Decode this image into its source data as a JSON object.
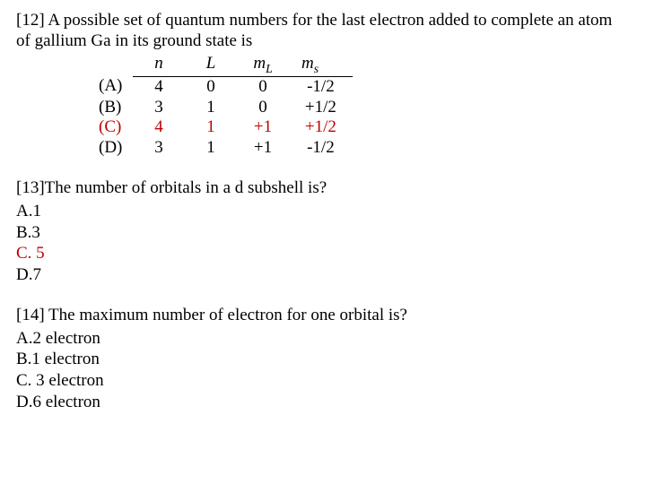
{
  "q12": {
    "prompt": "[12] A possible set of quantum numbers for the last electron added to complete an atom of gallium Ga in its ground state is",
    "headers": {
      "n": "n",
      "L": "L",
      "mL": "m",
      "mL_sub": "L",
      "ms": "m",
      "ms_sub": "s"
    },
    "rows": [
      {
        "label": "(A)",
        "n": "4",
        "L": "0",
        "mL": "0",
        "ms": "-1/2",
        "highlight": false
      },
      {
        "label": "(B)",
        "n": "3",
        "L": "1",
        "mL": "0",
        "ms": "+1/2",
        "highlight": false
      },
      {
        "label": "(C)",
        "n": "4",
        "L": "1",
        "mL": "+1",
        "ms": "+1/2",
        "highlight": true
      },
      {
        "label": "(D)",
        "n": "3",
        "L": "1",
        "mL": "+1",
        "ms": "-1/2",
        "highlight": false
      }
    ]
  },
  "q13": {
    "prompt": "[13]The number of orbitals in a d subshell is?",
    "opts": [
      {
        "text": "A.1",
        "highlight": false
      },
      {
        "text": "B.3",
        "highlight": false
      },
      {
        "text": "C. 5",
        "highlight": true
      },
      {
        "text": "D.7",
        "highlight": false
      }
    ]
  },
  "q14": {
    "prompt": "[14] The maximum number of  electron  for one orbital  is?",
    "opts": [
      {
        "text": "A.2 electron",
        "highlight": false
      },
      {
        "text": "B.1 electron",
        "highlight": false
      },
      {
        "text": "C. 3 electron",
        "highlight": false
      },
      {
        "text": "D.6 electron",
        "highlight": false
      }
    ]
  },
  "colors": {
    "highlight": "#c00000",
    "text": "#000000",
    "background": "#ffffff"
  }
}
